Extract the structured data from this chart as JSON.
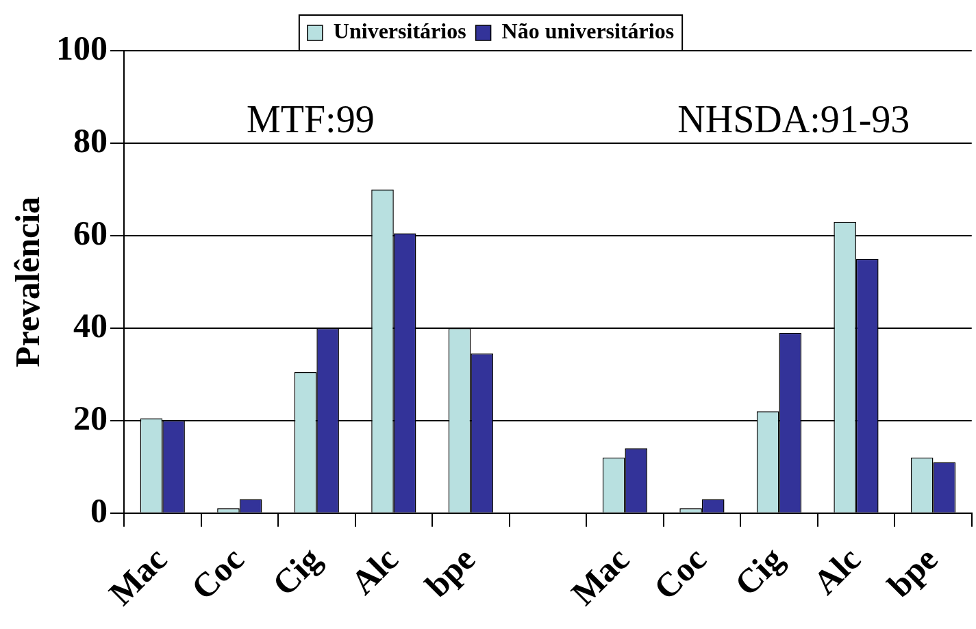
{
  "chart_data": {
    "type": "bar",
    "ylabel": "Prevalência",
    "categories": [
      "Mac",
      "Coc",
      "Cig",
      "Alc",
      "bpe",
      null,
      "Mac",
      "Coc",
      "Cig",
      "Alc",
      "bpe"
    ],
    "series": [
      {
        "name": "Universitários",
        "color": "#b8e0e0",
        "values": [
          20.5,
          1,
          30.5,
          70,
          40,
          null,
          12,
          1,
          22,
          63,
          12
        ]
      },
      {
        "name": "Não universitários",
        "color": "#333399",
        "values": [
          20,
          3,
          40,
          60.5,
          34.5,
          null,
          14,
          3,
          39,
          55,
          11
        ]
      }
    ],
    "annotations": [
      "MTF:99",
      "NHSDA:91-93"
    ],
    "ylim": [
      0,
      100
    ],
    "yticks": [
      0,
      20,
      40,
      60,
      80,
      100
    ],
    "grid": "y",
    "legend": "top"
  }
}
